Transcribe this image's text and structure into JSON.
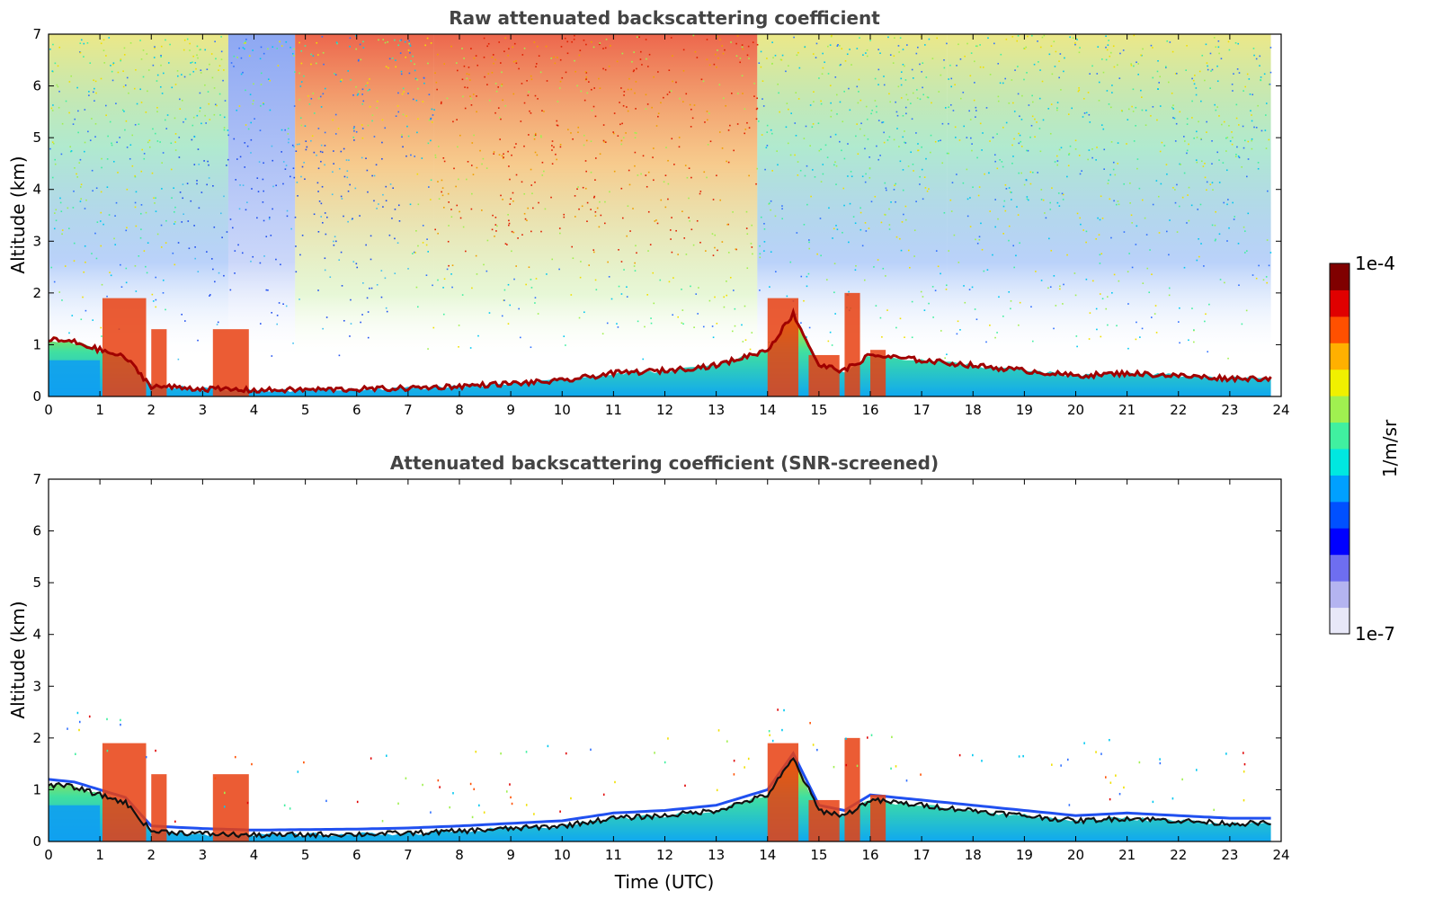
{
  "chart_data": [
    {
      "type": "heatmap",
      "title": "Raw attenuated backscattering coefficient",
      "xlabel": "",
      "ylabel": "Altitude (km)",
      "xlim": [
        0,
        24
      ],
      "ylim": [
        0,
        7
      ],
      "x_ticks": [
        0,
        1,
        2,
        3,
        4,
        5,
        6,
        7,
        8,
        9,
        10,
        11,
        12,
        13,
        14,
        15,
        16,
        17,
        18,
        19,
        20,
        21,
        22,
        23,
        24
      ],
      "y_ticks": [
        0,
        1,
        2,
        3,
        4,
        5,
        6,
        7
      ],
      "data_end_time": 23.8,
      "colorscale": "jet",
      "color_scale_type": "log",
      "grid": false,
      "layer_top_km": {
        "times": [
          0,
          0.5,
          1.0,
          1.5,
          2.0,
          3.0,
          4.0,
          5.0,
          6.0,
          7.0,
          8.0,
          9.0,
          10.0,
          11.0,
          12.0,
          13.0,
          14.0,
          14.5,
          15.0,
          15.5,
          16.0,
          17.0,
          18.0,
          19.0,
          20.0,
          21.0,
          22.0,
          23.0,
          23.8
        ],
        "heights": [
          1.1,
          1.05,
          0.9,
          0.75,
          0.2,
          0.15,
          0.12,
          0.13,
          0.14,
          0.16,
          0.2,
          0.25,
          0.3,
          0.45,
          0.5,
          0.6,
          0.9,
          1.6,
          0.6,
          0.5,
          0.8,
          0.7,
          0.6,
          0.5,
          0.4,
          0.45,
          0.4,
          0.35,
          0.35
        ]
      }
    },
    {
      "type": "heatmap",
      "title": "Attenuated backscattering coefficient (SNR-screened)",
      "xlabel": "Time (UTC)",
      "ylabel": "Altitude (km)",
      "xlim": [
        0,
        24
      ],
      "ylim": [
        0,
        7
      ],
      "x_ticks": [
        0,
        1,
        2,
        3,
        4,
        5,
        6,
        7,
        8,
        9,
        10,
        11,
        12,
        13,
        14,
        15,
        16,
        17,
        18,
        19,
        20,
        21,
        22,
        23,
        24
      ],
      "y_ticks": [
        0,
        1,
        2,
        3,
        4,
        5,
        6,
        7
      ],
      "data_end_time": 23.8,
      "colorscale": "jet",
      "color_scale_type": "log",
      "grid": false
    }
  ],
  "colorbar": {
    "label": "1/m/sr",
    "max_label": "1e-4",
    "min_label": "1e-7",
    "vmin": 1e-07,
    "vmax": 0.0001,
    "colors": [
      "#e8e8f8",
      "#b4b4f0",
      "#6e6ef0",
      "#0000ff",
      "#0050ff",
      "#00a0ff",
      "#00e8e0",
      "#40f0a0",
      "#a0f050",
      "#f0f000",
      "#ffb000",
      "#ff5000",
      "#e00000",
      "#800000"
    ]
  }
}
